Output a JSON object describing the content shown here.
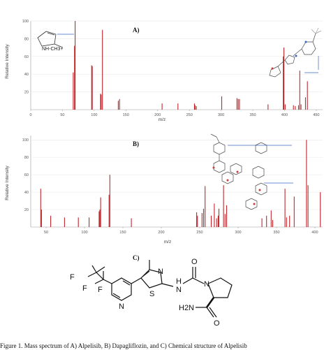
{
  "chart_data": [
    {
      "type": "bar",
      "panel_label": "A)",
      "ylabel": "Relative Intensity",
      "xlabel": "m/z",
      "xlim": [
        0,
        460
      ],
      "ylim": [
        0,
        100
      ],
      "xticks": [
        0,
        50,
        100,
        150,
        200,
        250,
        300,
        350,
        400,
        450
      ],
      "yticks": [
        20,
        40,
        60,
        80,
        100
      ],
      "annotation": "NH-CH3+",
      "x": [
        67,
        69,
        70,
        96,
        97,
        110,
        111,
        113,
        138,
        140,
        207,
        232,
        258,
        259,
        261,
        301,
        325,
        327,
        329,
        374,
        398,
        399,
        401,
        414,
        417,
        422,
        424,
        426,
        433,
        436
      ],
      "y": [
        42,
        72,
        100,
        50,
        49,
        18,
        17,
        90,
        10,
        12,
        7,
        7,
        7,
        5,
        4,
        15,
        13,
        12,
        12,
        6,
        60,
        70,
        6,
        5,
        4,
        5,
        44,
        6,
        14,
        32
      ]
    },
    {
      "type": "bar",
      "panel_label": "B)",
      "ylabel": "Relative Intensity",
      "xlabel": "m/z",
      "xlim": [
        30,
        410
      ],
      "ylim": [
        0,
        105
      ],
      "xticks": [
        50,
        100,
        150,
        200,
        250,
        300,
        350,
        400
      ],
      "yticks": [
        20,
        40,
        60,
        80,
        100
      ],
      "x": [
        43,
        44,
        56,
        74,
        92,
        106,
        119,
        120,
        121,
        132,
        133,
        161,
        246,
        247,
        253,
        255,
        257,
        265,
        269,
        272,
        274,
        275,
        281,
        283,
        285,
        331,
        337,
        343,
        345,
        361,
        363,
        367,
        373,
        389,
        391,
        407
      ],
      "y": [
        44,
        20,
        13,
        11,
        11,
        11,
        18,
        20,
        34,
        37,
        60,
        10,
        17,
        13,
        16,
        21,
        47,
        13,
        27,
        10,
        13,
        21,
        48,
        15,
        25,
        10,
        13,
        19,
        8,
        44,
        11,
        13,
        35,
        100,
        48,
        40
      ]
    }
  ],
  "structure_c": {
    "panel_label": "C)",
    "atoms": {
      "f1": "F",
      "f2": "F",
      "f3": "F",
      "n_pyridine": "N",
      "n_thiazole": "N",
      "s_thiazole": "S",
      "nh_amide": "H",
      "nh_amide_n": "N",
      "o_urea": "O",
      "n_pyrrolidine": "N",
      "h2n": "H2N",
      "o_amide": "O"
    }
  },
  "caption": "Figure 1. Mass spectrum of A) Alpelisib, B) Dapagliflozin, and C) Chemical structure of Alpelisib"
}
